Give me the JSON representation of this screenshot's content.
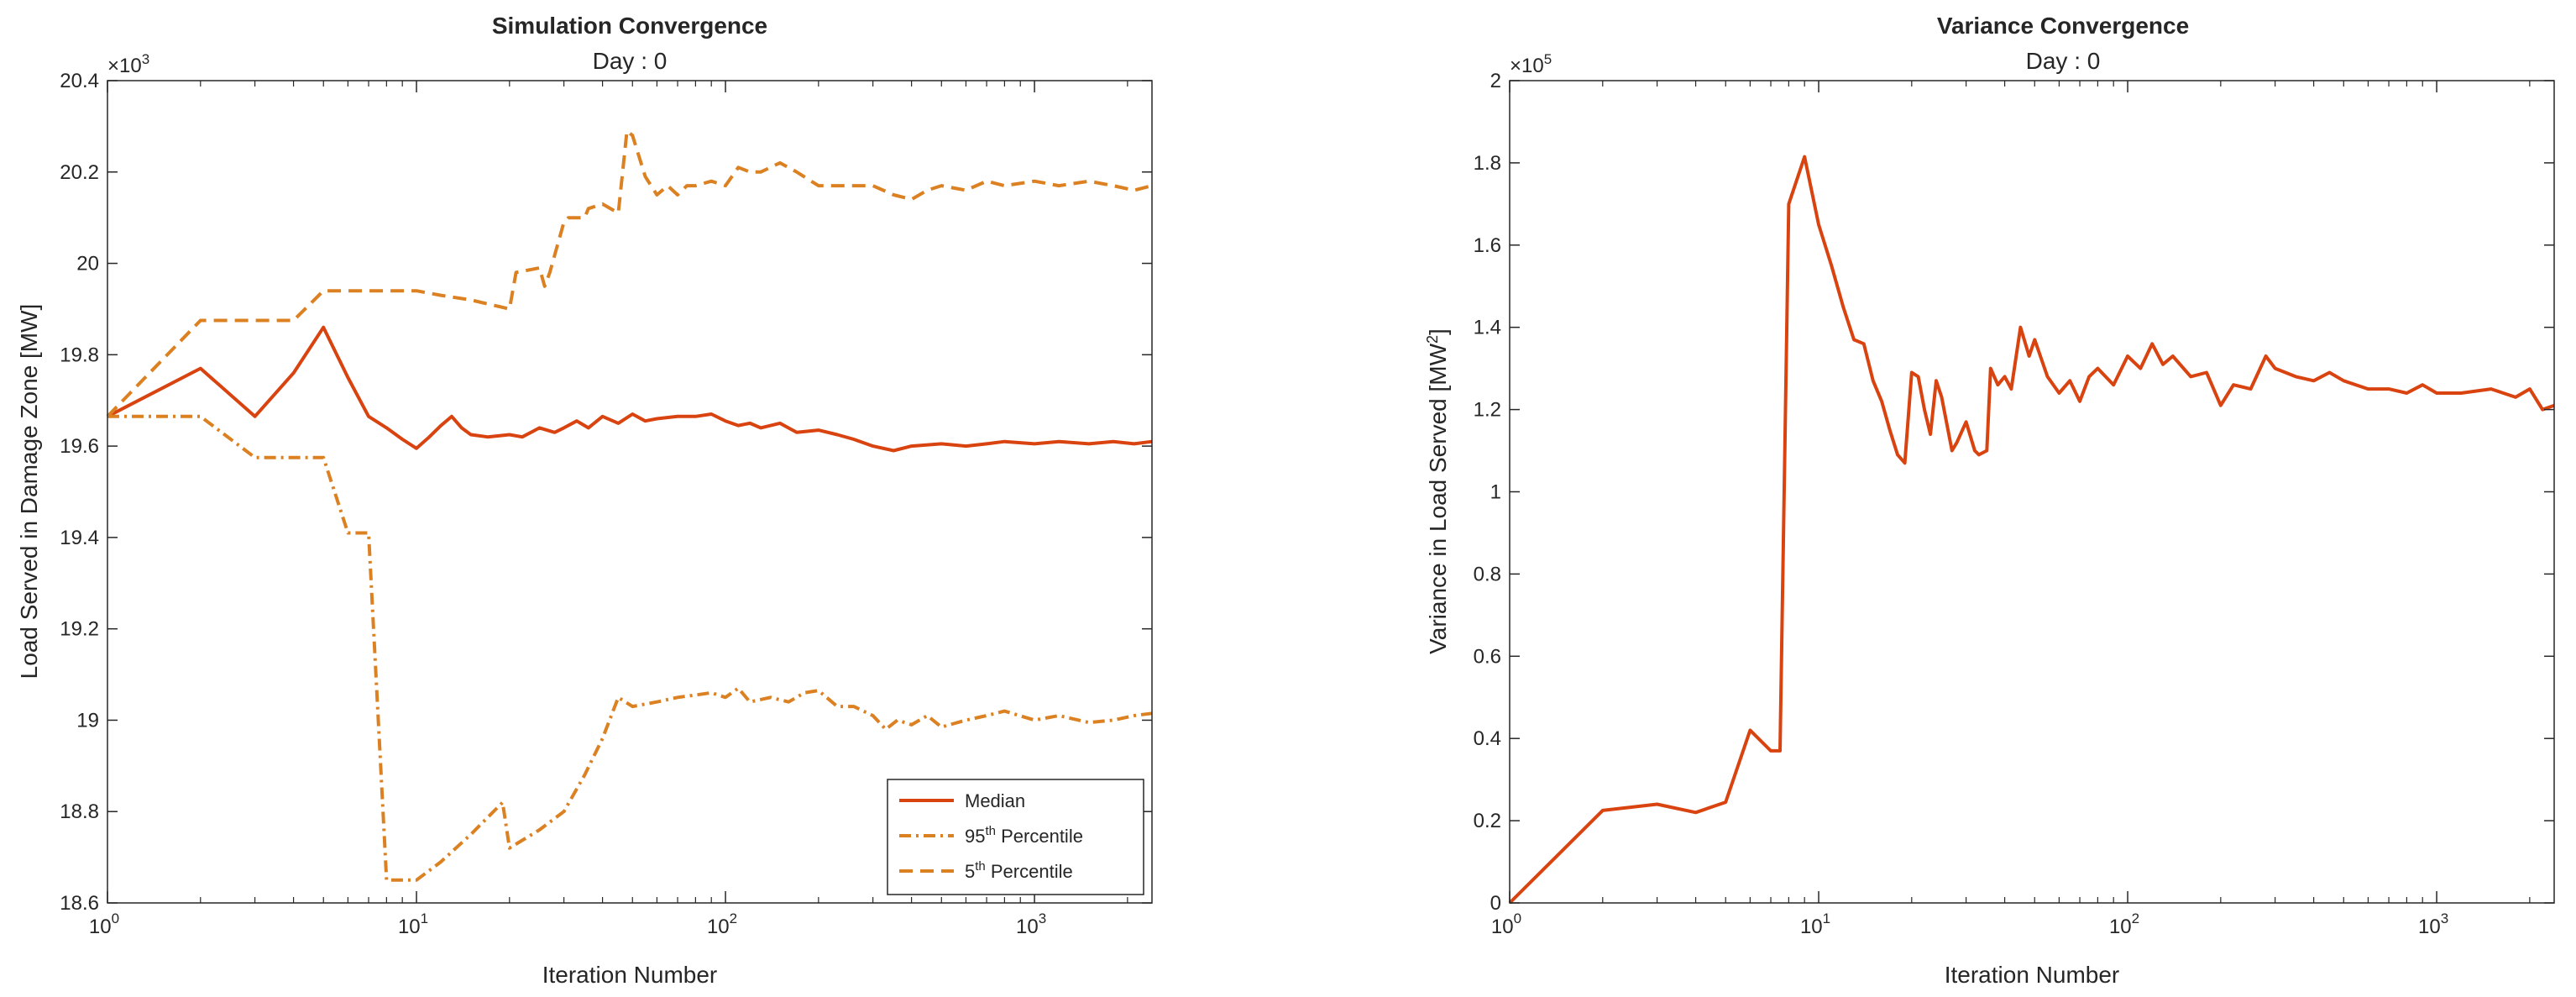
{
  "colors": {
    "median": "#d94310",
    "percentile": "#dc8122",
    "axis": "#262626",
    "background": "#ffffff"
  },
  "chart_data": [
    {
      "type": "line",
      "title": "Simulation Convergence",
      "subtitle": "Day : 0",
      "xlabel": "Iteration Number",
      "ylabel": "Load Served in Damage Zone [MW]",
      "xscale": "log",
      "xlim": [
        1,
        2400
      ],
      "ylim": [
        18.6,
        20.4
      ],
      "y_exponent_label": "×10",
      "y_exponent_sup": "3",
      "xticks": [
        1,
        10,
        100,
        1000
      ],
      "xtick_labels": [
        {
          "base": "10",
          "exp": "0"
        },
        {
          "base": "10",
          "exp": "1"
        },
        {
          "base": "10",
          "exp": "2"
        },
        {
          "base": "10",
          "exp": "3"
        }
      ],
      "yticks": [
        18.6,
        18.8,
        19.0,
        19.2,
        19.4,
        19.6,
        19.8,
        20.0,
        20.2,
        20.4
      ],
      "ytick_labels": [
        "18.6",
        "18.8",
        "19",
        "19.2",
        "19.4",
        "19.6",
        "19.8",
        "20",
        "20.2",
        "20.4"
      ],
      "legend": {
        "position": "bottom-right",
        "entries": [
          {
            "main": "Median",
            "sup": "",
            "rest": ""
          },
          {
            "main": "95",
            "sup": "th",
            "rest": " Percentile"
          },
          {
            "main": "5",
            "sup": "th",
            "rest": " Percentile"
          }
        ]
      },
      "series": [
        {
          "name": "Median",
          "style": "solid",
          "color_key": "median",
          "x": [
            1,
            2,
            3,
            4,
            5,
            6,
            7,
            8,
            9,
            10,
            11,
            12,
            13,
            14,
            15,
            17,
            20,
            22,
            25,
            28,
            30,
            33,
            36,
            40,
            45,
            50,
            55,
            60,
            70,
            80,
            90,
            100,
            110,
            120,
            130,
            150,
            170,
            200,
            230,
            260,
            300,
            350,
            400,
            500,
            600,
            700,
            800,
            1000,
            1200,
            1500,
            1800,
            2100,
            2400
          ],
          "y": [
            19.665,
            19.77,
            19.665,
            19.76,
            19.86,
            19.75,
            19.665,
            19.64,
            19.615,
            19.595,
            19.62,
            19.645,
            19.665,
            19.64,
            19.625,
            19.62,
            19.625,
            19.62,
            19.64,
            19.63,
            19.64,
            19.655,
            19.64,
            19.665,
            19.65,
            19.67,
            19.655,
            19.66,
            19.665,
            19.665,
            19.67,
            19.655,
            19.645,
            19.65,
            19.64,
            19.65,
            19.63,
            19.635,
            19.625,
            19.615,
            19.6,
            19.59,
            19.6,
            19.605,
            19.6,
            19.605,
            19.61,
            19.605,
            19.61,
            19.605,
            19.61,
            19.605,
            19.61
          ]
        },
        {
          "name": "95th Percentile",
          "style": "dashdot",
          "color_key": "percentile",
          "x": [
            1,
            2,
            3,
            4,
            5,
            6,
            7,
            8,
            9,
            10,
            12,
            15,
            19,
            20,
            25,
            30,
            35,
            40,
            45,
            50,
            60,
            70,
            80,
            90,
            100,
            110,
            120,
            140,
            160,
            180,
            200,
            230,
            260,
            300,
            330,
            360,
            400,
            450,
            500,
            600,
            700,
            800,
            1000,
            1200,
            1500,
            1800,
            2100,
            2400
          ],
          "y": [
            19.665,
            19.665,
            19.575,
            19.575,
            19.575,
            19.41,
            19.41,
            18.65,
            18.65,
            18.65,
            18.69,
            18.75,
            18.82,
            18.72,
            18.76,
            18.8,
            18.88,
            18.96,
            19.05,
            19.03,
            19.04,
            19.05,
            19.055,
            19.06,
            19.05,
            19.07,
            19.04,
            19.05,
            19.04,
            19.06,
            19.065,
            19.03,
            19.03,
            19.01,
            18.98,
            19.0,
            18.99,
            19.01,
            18.985,
            19.0,
            19.01,
            19.02,
            19.0,
            19.01,
            18.995,
            19.0,
            19.01,
            19.015
          ]
        },
        {
          "name": "5th Percentile",
          "style": "dashed",
          "color_key": "percentile",
          "x": [
            1,
            2,
            3,
            4,
            5,
            6,
            7,
            8,
            9,
            10,
            12,
            15,
            20,
            21,
            25,
            26,
            27,
            30,
            31,
            35,
            36,
            40,
            45,
            48,
            50,
            55,
            60,
            65,
            70,
            75,
            80,
            90,
            100,
            110,
            120,
            130,
            150,
            170,
            200,
            230,
            260,
            300,
            350,
            400,
            450,
            500,
            600,
            700,
            800,
            1000,
            1200,
            1500,
            1800,
            2100,
            2400
          ],
          "y": [
            19.665,
            19.875,
            19.875,
            19.875,
            19.94,
            19.94,
            19.94,
            19.94,
            19.94,
            19.94,
            19.93,
            19.92,
            19.9,
            19.98,
            19.99,
            19.95,
            19.98,
            20.09,
            20.1,
            20.1,
            20.12,
            20.13,
            20.11,
            20.29,
            20.28,
            20.19,
            20.15,
            20.17,
            20.15,
            20.17,
            20.17,
            20.18,
            20.17,
            20.21,
            20.2,
            20.2,
            20.22,
            20.2,
            20.17,
            20.17,
            20.17,
            20.17,
            20.15,
            20.14,
            20.16,
            20.17,
            20.16,
            20.18,
            20.17,
            20.18,
            20.17,
            20.18,
            20.17,
            20.16,
            20.17
          ]
        }
      ]
    },
    {
      "type": "line",
      "title": "Variance Convergence",
      "subtitle": "Day : 0",
      "xlabel": "Iteration Number",
      "ylabel_main": "Variance in Load Served [MW",
      "ylabel_sup": "2",
      "ylabel_end": "]",
      "xscale": "log",
      "xlim": [
        1,
        2400
      ],
      "ylim": [
        0,
        2
      ],
      "y_exponent_label": "×10",
      "y_exponent_sup": "5",
      "xticks": [
        1,
        10,
        100,
        1000
      ],
      "xtick_labels": [
        {
          "base": "10",
          "exp": "0"
        },
        {
          "base": "10",
          "exp": "1"
        },
        {
          "base": "10",
          "exp": "2"
        },
        {
          "base": "10",
          "exp": "3"
        }
      ],
      "yticks": [
        0,
        0.2,
        0.4,
        0.6,
        0.8,
        1.0,
        1.2,
        1.4,
        1.6,
        1.8,
        2.0
      ],
      "ytick_labels": [
        "0",
        "0.2",
        "0.4",
        "0.6",
        "0.8",
        "1",
        "1.2",
        "1.4",
        "1.6",
        "1.8",
        "2"
      ],
      "series": [
        {
          "name": "Variance",
          "style": "solid",
          "color_key": "median",
          "x": [
            1,
            2,
            3,
            4,
            5,
            6,
            7,
            7.5,
            8,
            9,
            10,
            11,
            12,
            13,
            14,
            15,
            16,
            17,
            18,
            19,
            20,
            21,
            22,
            23,
            24,
            25,
            27,
            28,
            30,
            32,
            33,
            35,
            36,
            38,
            40,
            42,
            45,
            48,
            50,
            55,
            60,
            65,
            70,
            75,
            80,
            90,
            100,
            110,
            120,
            130,
            140,
            160,
            180,
            200,
            220,
            250,
            280,
            300,
            350,
            400,
            450,
            500,
            600,
            700,
            800,
            900,
            1000,
            1200,
            1500,
            1800,
            2000,
            2200,
            2400
          ],
          "y": [
            0.0,
            0.225,
            0.24,
            0.22,
            0.245,
            0.42,
            0.37,
            0.37,
            1.7,
            1.815,
            1.65,
            1.55,
            1.45,
            1.37,
            1.36,
            1.27,
            1.22,
            1.15,
            1.09,
            1.07,
            1.29,
            1.28,
            1.2,
            1.14,
            1.27,
            1.23,
            1.1,
            1.12,
            1.17,
            1.1,
            1.09,
            1.1,
            1.3,
            1.26,
            1.28,
            1.25,
            1.4,
            1.33,
            1.37,
            1.28,
            1.24,
            1.27,
            1.22,
            1.28,
            1.3,
            1.26,
            1.33,
            1.3,
            1.36,
            1.31,
            1.33,
            1.28,
            1.29,
            1.21,
            1.26,
            1.25,
            1.33,
            1.3,
            1.28,
            1.27,
            1.29,
            1.27,
            1.25,
            1.25,
            1.24,
            1.26,
            1.24,
            1.24,
            1.25,
            1.23,
            1.25,
            1.2,
            1.21
          ]
        }
      ]
    }
  ]
}
